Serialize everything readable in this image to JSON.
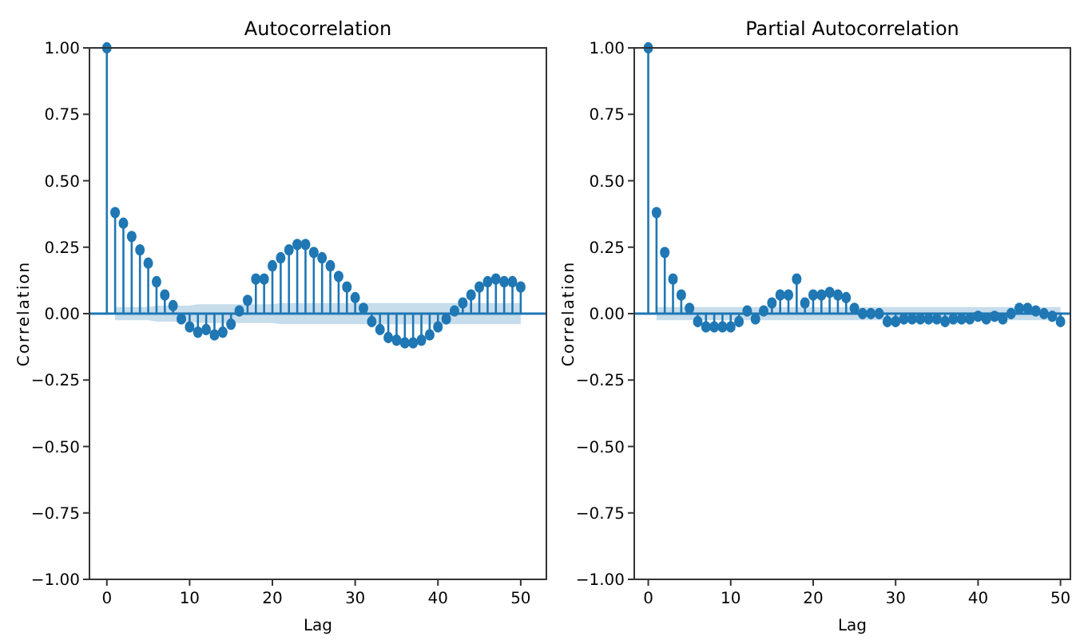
{
  "chart_data": [
    {
      "type": "lollipop",
      "title": "Autocorrelation",
      "xlabel": "Lag",
      "ylabel": "Correlation",
      "x": [
        0,
        1,
        2,
        3,
        4,
        5,
        6,
        7,
        8,
        9,
        10,
        11,
        12,
        13,
        14,
        15,
        16,
        17,
        18,
        19,
        20,
        21,
        22,
        23,
        24,
        25,
        26,
        27,
        28,
        29,
        30,
        31,
        32,
        33,
        34,
        35,
        36,
        37,
        38,
        39,
        40,
        41,
        42,
        43,
        44,
        45,
        46,
        47,
        48,
        49,
        50
      ],
      "series": [
        {
          "color": "#1f77b4",
          "values": [
            1,
            0.38,
            0.34,
            0.29,
            0.24,
            0.19,
            0.12,
            0.07,
            0.03,
            -0.02,
            -0.05,
            -0.07,
            -0.06,
            -0.08,
            -0.07,
            -0.04,
            0.01,
            0.05,
            0.13,
            0.13,
            0.18,
            0.21,
            0.24,
            0.26,
            0.26,
            0.23,
            0.21,
            0.18,
            0.14,
            0.1,
            0.06,
            0.02,
            -0.03,
            -0.06,
            -0.09,
            -0.1,
            -0.11,
            -0.11,
            -0.1,
            -0.08,
            -0.05,
            -0.02,
            0.01,
            0.04,
            0.07,
            0.1,
            0.12,
            0.13,
            0.12,
            0.12,
            0.1
          ],
          "lower": [
            null,
            -0.025,
            -0.025,
            -0.025,
            -0.025,
            -0.025,
            -0.03,
            -0.03,
            -0.03,
            -0.03,
            -0.03,
            -0.035,
            -0.035,
            -0.035,
            -0.035,
            -0.035,
            -0.035,
            -0.035,
            -0.035,
            -0.035,
            -0.035,
            -0.04,
            -0.04,
            -0.04,
            -0.04,
            -0.04,
            -0.04,
            -0.04,
            -0.04,
            -0.04,
            -0.04,
            -0.04,
            -0.04,
            -0.04,
            -0.04,
            -0.04,
            -0.04,
            -0.04,
            -0.04,
            -0.04,
            -0.04,
            -0.04,
            -0.04,
            -0.04,
            -0.04,
            -0.04,
            -0.04,
            -0.04,
            -0.04,
            -0.04,
            -0.04
          ],
          "upper": [
            null,
            0.025,
            0.025,
            0.025,
            0.025,
            0.025,
            0.03,
            0.03,
            0.03,
            0.03,
            0.03,
            0.035,
            0.035,
            0.035,
            0.035,
            0.035,
            0.035,
            0.035,
            0.035,
            0.035,
            0.035,
            0.04,
            0.04,
            0.04,
            0.04,
            0.04,
            0.04,
            0.04,
            0.04,
            0.04,
            0.04,
            0.04,
            0.04,
            0.04,
            0.04,
            0.04,
            0.04,
            0.04,
            0.04,
            0.04,
            0.04,
            0.04,
            0.04,
            0.04,
            0.04,
            0.04,
            0.04,
            0.04,
            0.04,
            0.04,
            0.04
          ]
        }
      ],
      "marker": "circle",
      "xlim": [
        -2.1,
        53.1
      ],
      "xticks": [
        0,
        10,
        20,
        30,
        40,
        50
      ],
      "ylim": [
        -1,
        1
      ],
      "yticks": [
        {
          "value": -1,
          "label": "−1.00"
        },
        {
          "value": -0.75,
          "label": "−0.75"
        },
        {
          "value": -0.5,
          "label": "−0.50"
        },
        {
          "value": -0.25,
          "label": "−0.25"
        },
        {
          "value": 0,
          "label": "0.00"
        },
        {
          "value": 0.25,
          "label": "0.25"
        },
        {
          "value": 0.5,
          "label": "0.50"
        },
        {
          "value": 0.75,
          "label": "0.75"
        },
        {
          "value": 1,
          "label": "1.00"
        }
      ],
      "grid": false,
      "ref_lines": [
        {
          "axis": "y",
          "value": 0,
          "color": "#1f77b4"
        }
      ]
    },
    {
      "type": "lollipop",
      "title": "Partial Autocorrelation",
      "xlabel": "Lag",
      "ylabel": "Correlation",
      "x": [
        0,
        1,
        2,
        3,
        4,
        5,
        6,
        7,
        8,
        9,
        10,
        11,
        12,
        13,
        14,
        15,
        16,
        17,
        18,
        19,
        20,
        21,
        22,
        23,
        24,
        25,
        26,
        27,
        28,
        29,
        30,
        31,
        32,
        33,
        34,
        35,
        36,
        37,
        38,
        39,
        40,
        41,
        42,
        43,
        44,
        45,
        46,
        47,
        48,
        49,
        50
      ],
      "series": [
        {
          "color": "#1f77b4",
          "values": [
            1,
            0.38,
            0.23,
            0.13,
            0.07,
            0.02,
            -0.03,
            -0.05,
            -0.05,
            -0.05,
            -0.05,
            -0.03,
            0.01,
            -0.02,
            0.01,
            0.04,
            0.07,
            0.07,
            0.13,
            0.04,
            0.07,
            0.07,
            0.08,
            0.07,
            0.06,
            0.02,
            0,
            0,
            0,
            -0.03,
            -0.03,
            -0.02,
            -0.02,
            -0.02,
            -0.02,
            -0.02,
            -0.03,
            -0.02,
            -0.02,
            -0.02,
            -0.01,
            -0.02,
            -0.01,
            -0.02,
            0,
            0.02,
            0.02,
            0.01,
            0,
            -0.01,
            -0.03
          ],
          "lower": [
            null,
            -0.025,
            -0.025,
            -0.025,
            -0.025,
            -0.025,
            -0.025,
            -0.025,
            -0.025,
            -0.025,
            -0.025,
            -0.025,
            -0.025,
            -0.025,
            -0.025,
            -0.025,
            -0.025,
            -0.025,
            -0.025,
            -0.025,
            -0.025,
            -0.025,
            -0.025,
            -0.025,
            -0.025,
            -0.025,
            -0.025,
            -0.025,
            -0.025,
            -0.025,
            -0.025,
            -0.025,
            -0.025,
            -0.025,
            -0.025,
            -0.025,
            -0.025,
            -0.025,
            -0.025,
            -0.025,
            -0.025,
            -0.025,
            -0.025,
            -0.025,
            -0.025,
            -0.025,
            -0.025,
            -0.025,
            -0.025,
            -0.025,
            -0.025
          ],
          "upper": [
            null,
            0.025,
            0.025,
            0.025,
            0.025,
            0.025,
            0.025,
            0.025,
            0.025,
            0.025,
            0.025,
            0.025,
            0.025,
            0.025,
            0.025,
            0.025,
            0.025,
            0.025,
            0.025,
            0.025,
            0.025,
            0.025,
            0.025,
            0.025,
            0.025,
            0.025,
            0.025,
            0.025,
            0.025,
            0.025,
            0.025,
            0.025,
            0.025,
            0.025,
            0.025,
            0.025,
            0.025,
            0.025,
            0.025,
            0.025,
            0.025,
            0.025,
            0.025,
            0.025,
            0.025,
            0.025,
            0.025,
            0.025,
            0.025,
            0.025,
            0.025
          ]
        }
      ],
      "marker": "circle",
      "xlim": [
        -1.7,
        51.2
      ],
      "xticks": [
        0,
        10,
        20,
        30,
        40,
        50
      ],
      "ylim": [
        -1,
        1
      ],
      "yticks": [
        {
          "value": -1,
          "label": "−1.00"
        },
        {
          "value": -0.75,
          "label": "−0.75"
        },
        {
          "value": -0.5,
          "label": "−0.50"
        },
        {
          "value": -0.25,
          "label": "−0.25"
        },
        {
          "value": 0,
          "label": "0.00"
        },
        {
          "value": 0.25,
          "label": "0.25"
        },
        {
          "value": 0.5,
          "label": "0.50"
        },
        {
          "value": 0.75,
          "label": "0.75"
        },
        {
          "value": 1,
          "label": "1.00"
        }
      ],
      "grid": false,
      "ref_lines": [
        {
          "axis": "y",
          "value": 0,
          "color": "#1f77b4"
        }
      ]
    }
  ]
}
